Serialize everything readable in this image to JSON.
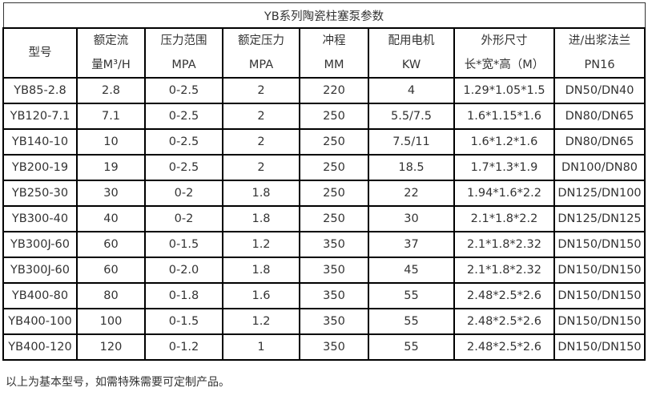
{
  "title": "YB系列陶瓷柱塞泵参数",
  "headers": [
    [
      "型号",
      ""
    ],
    [
      "额定流",
      "量M³/H"
    ],
    [
      "压力范围",
      "MPA"
    ],
    [
      "额定压力",
      "MPA"
    ],
    [
      "冲程",
      "MM"
    ],
    [
      "配用电机",
      "KW"
    ],
    [
      "外形尺寸",
      "长*宽*高（M）"
    ],
    [
      "进/出浆法兰",
      "PN16"
    ]
  ],
  "rows": [
    [
      "YB85-2.8",
      "2.8",
      "0-2.5",
      "2",
      "220",
      "4",
      "1.29*1.05*1.5",
      "DN50/DN40"
    ],
    [
      "YB120-7.1",
      "7.1",
      "0-2.5",
      "2",
      "250",
      "5.5/7.5",
      "1.6*1.15*1.6",
      "DN80/DN65"
    ],
    [
      "YB140-10",
      "10",
      "0-2.5",
      "2",
      "250",
      "7.5/11",
      "1.6*1.2*1.6",
      "DN80/DN65"
    ],
    [
      "YB200-19",
      "19",
      "0-2.5",
      "2",
      "250",
      "18.5",
      "1.7*1.3*1.9",
      "DN100/DN80"
    ],
    [
      "YB250-30",
      "30",
      "0-2",
      "1.8",
      "250",
      "22",
      "1.94*1.6*2.2",
      "DN125/DN100"
    ],
    [
      "YB300-40",
      "40",
      "0-2",
      "1.8",
      "250",
      "30",
      "2.1*1.8*2.2",
      "DN125/DN125"
    ],
    [
      "YB300J-60",
      "60",
      "0-1.5",
      "1.2",
      "350",
      "37",
      "2.1*1.8*2.32",
      "DN150/DN150"
    ],
    [
      "YB300J-60",
      "60",
      "0-2.0",
      "1.8",
      "350",
      "45",
      "2.1*1.8*2.32",
      "DN150/DN150"
    ],
    [
      "YB400-80",
      "80",
      "0-1.8",
      "1.6",
      "350",
      "55",
      "2.48*2.5*2.6",
      "DN150/DN150"
    ],
    [
      "YB400-100",
      "100",
      "0-1.5",
      "1.2",
      "350",
      "55",
      "2.48*2.5*2.6",
      "DN150/DN150"
    ],
    [
      "YB400-120",
      "120",
      "0-1.2",
      "1",
      "350",
      "55",
      "2.48*2.5*2.6",
      "DN150/DN150"
    ]
  ],
  "footnote": "以上为基本型号，如需特殊需要可定制产品。"
}
